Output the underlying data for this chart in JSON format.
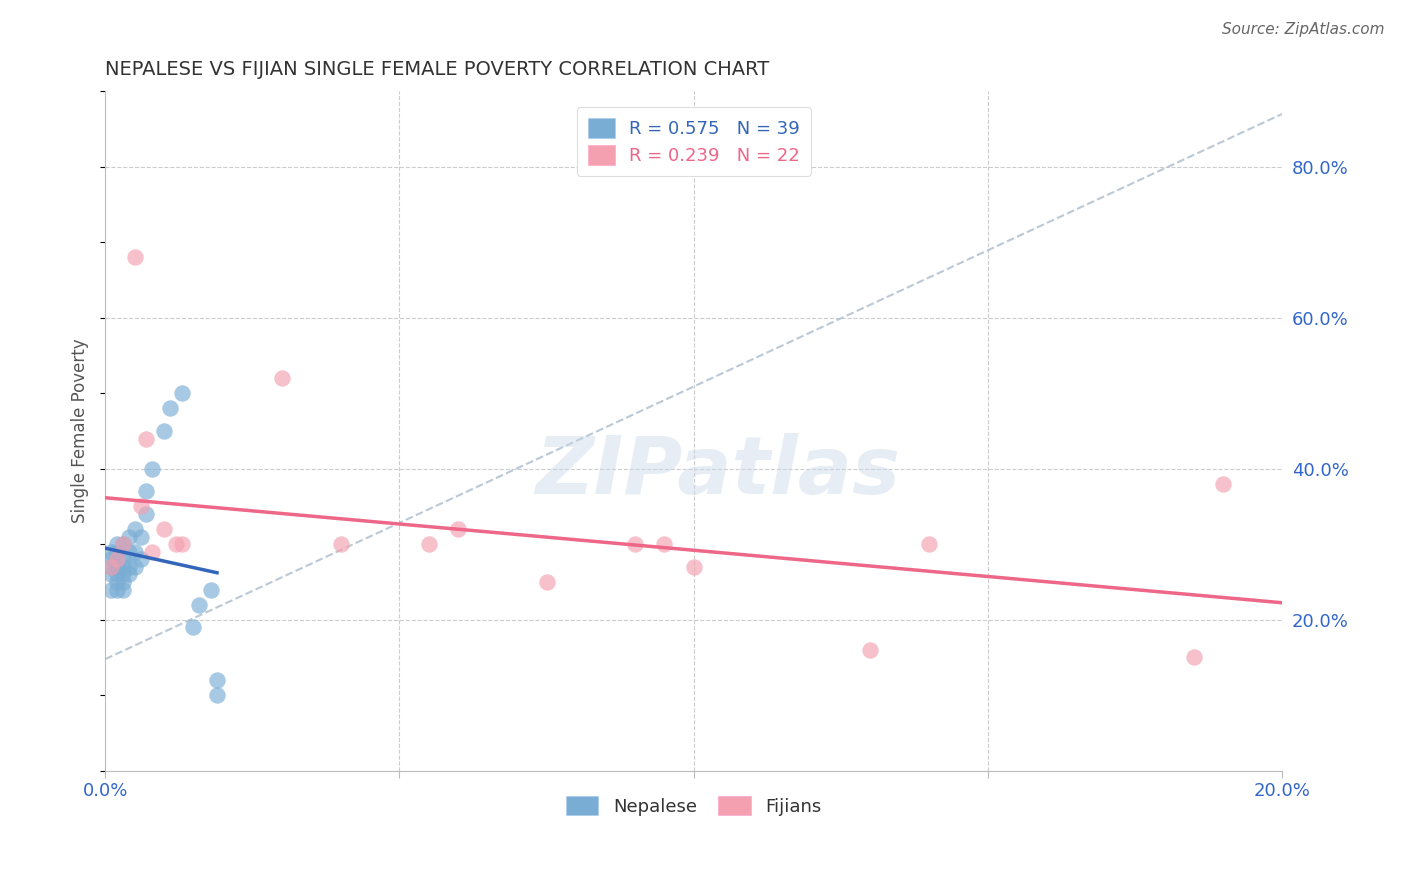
{
  "title": "NEPALESE VS FIJIAN SINGLE FEMALE POVERTY CORRELATION CHART",
  "source": "Source: ZipAtlas.com",
  "ylabel_label": "Single Female Poverty",
  "xlim": [
    0.0,
    0.2
  ],
  "ylim": [
    0.0,
    0.9
  ],
  "nepalese_R": 0.575,
  "nepalese_N": 39,
  "fijian_R": 0.239,
  "fijian_N": 22,
  "nepalese_color": "#7AADD4",
  "fijian_color": "#F4A0B0",
  "nepalese_line_color": "#3366BB",
  "fijian_line_color": "#EE6688",
  "diagonal_color": "#AABBCC",
  "nepalese_x": [
    0.001,
    0.001,
    0.001,
    0.001,
    0.001,
    0.002,
    0.002,
    0.002,
    0.002,
    0.002,
    0.002,
    0.002,
    0.002,
    0.003,
    0.003,
    0.003,
    0.003,
    0.003,
    0.003,
    0.004,
    0.004,
    0.004,
    0.004,
    0.005,
    0.005,
    0.005,
    0.006,
    0.006,
    0.007,
    0.007,
    0.008,
    0.01,
    0.011,
    0.013,
    0.015,
    0.016,
    0.018,
    0.019,
    0.019
  ],
  "nepalese_y": [
    0.24,
    0.26,
    0.27,
    0.28,
    0.29,
    0.24,
    0.25,
    0.26,
    0.27,
    0.27,
    0.28,
    0.29,
    0.3,
    0.24,
    0.25,
    0.26,
    0.27,
    0.28,
    0.3,
    0.26,
    0.27,
    0.29,
    0.31,
    0.27,
    0.29,
    0.32,
    0.28,
    0.31,
    0.34,
    0.37,
    0.4,
    0.45,
    0.48,
    0.5,
    0.19,
    0.22,
    0.24,
    0.12,
    0.1
  ],
  "fijian_x": [
    0.001,
    0.002,
    0.003,
    0.005,
    0.006,
    0.007,
    0.008,
    0.01,
    0.012,
    0.013,
    0.03,
    0.04,
    0.055,
    0.06,
    0.075,
    0.09,
    0.095,
    0.1,
    0.13,
    0.14,
    0.185,
    0.19
  ],
  "fijian_y": [
    0.27,
    0.28,
    0.3,
    0.68,
    0.35,
    0.44,
    0.29,
    0.32,
    0.3,
    0.3,
    0.52,
    0.3,
    0.3,
    0.32,
    0.25,
    0.3,
    0.3,
    0.27,
    0.16,
    0.3,
    0.15,
    0.38
  ],
  "watermark_text": "ZIPatlas",
  "nepalese_label": "Nepalese",
  "fijian_label": "Fijians"
}
